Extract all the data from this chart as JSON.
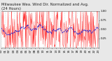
{
  "title": "Milwaukee Wea. Wind Dir. Normalized and Avg.\n(24 Hours)",
  "bg_color": "#e8e8e8",
  "plot_bg_color": "#ffffff",
  "red_color": "#ff0000",
  "blue_color": "#2222cc",
  "ylim": [
    0.0,
    1.0
  ],
  "n_points": 288,
  "grid_color": "#aaaaaa",
  "title_fontsize": 3.8,
  "tick_fontsize": 2.8,
  "ytick_values": [
    0.25,
    0.5,
    0.75,
    1.0
  ],
  "n_xticks": 24,
  "seed": 42
}
